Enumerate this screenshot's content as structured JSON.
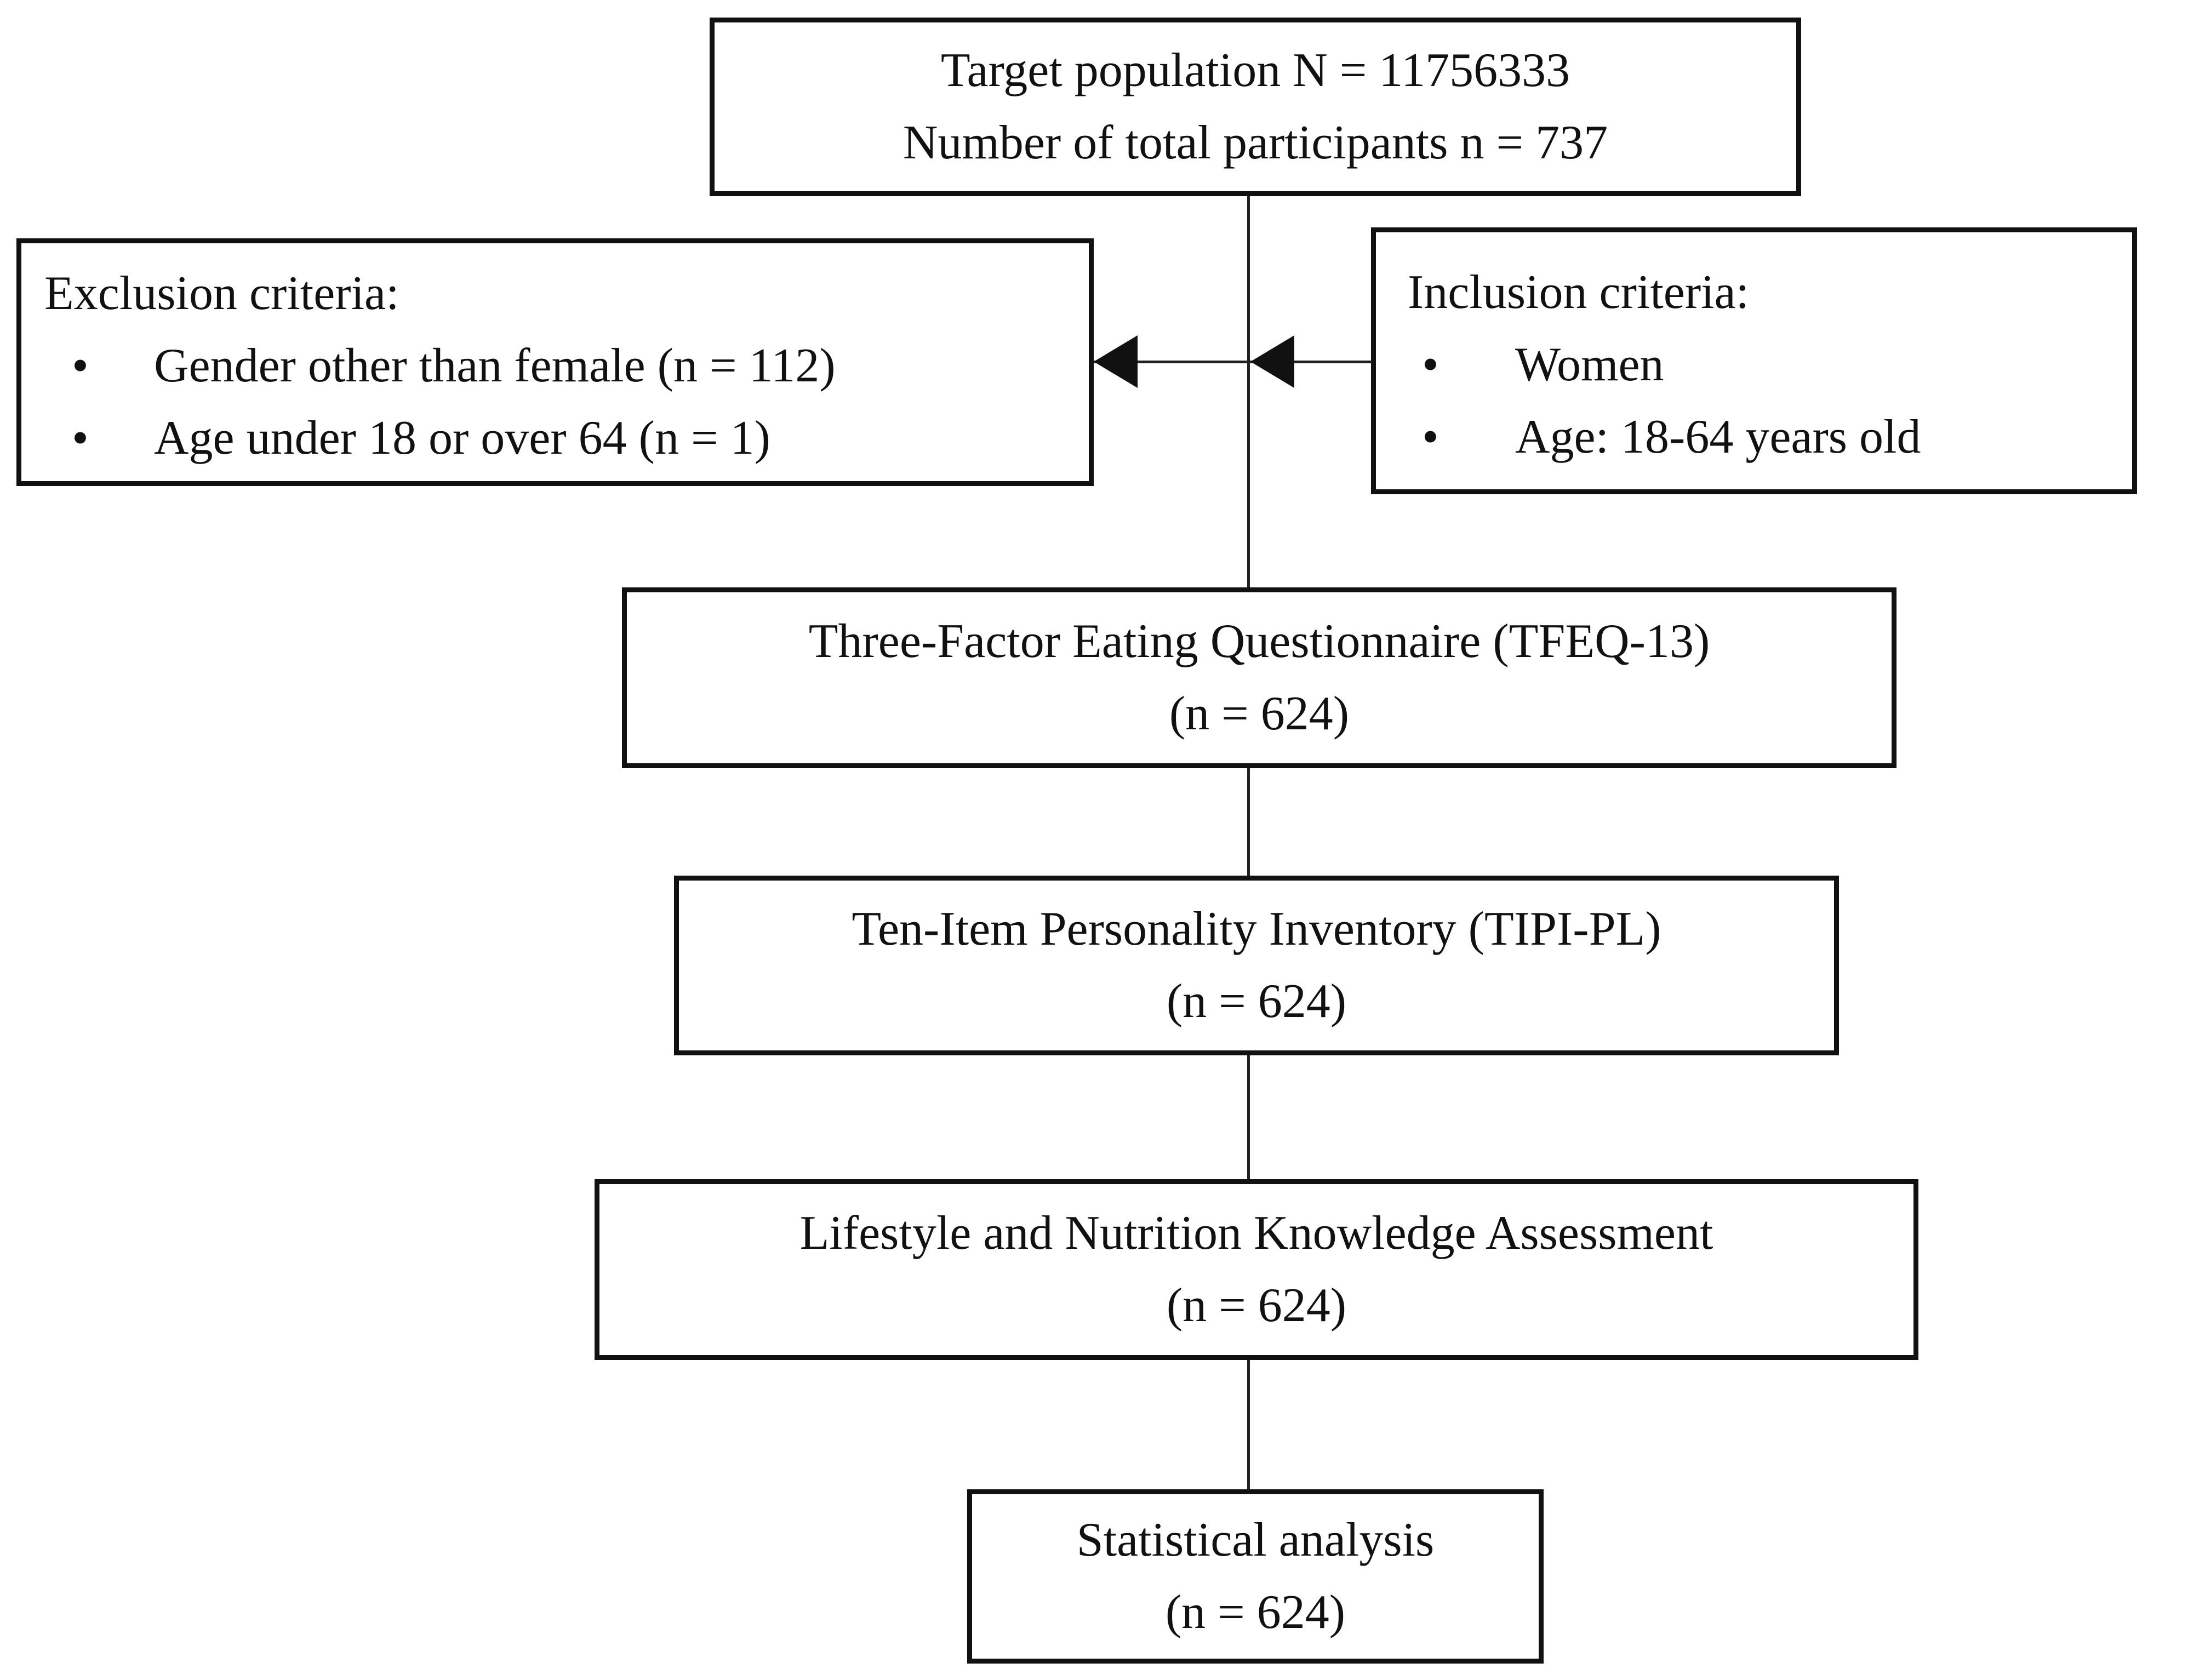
{
  "diagram": {
    "type": "study-flowchart",
    "colors": {
      "border": "#111111",
      "text": "#111111",
      "background": "#ffffff",
      "line": "#222222"
    },
    "top_box": {
      "line1": "Target population N = 11756333",
      "line2": "Number of total participants n = 737"
    },
    "exclusion_box": {
      "title": "Exclusion criteria:",
      "bullet": "•",
      "items": [
        "Gender other than female (n = 112)",
        "Age under 18 or over 64 (n = 1)"
      ]
    },
    "inclusion_box": {
      "title": "Inclusion criteria:",
      "bullet": "•",
      "items": [
        "Women",
        "Age: 18-64 years old"
      ]
    },
    "steps": [
      {
        "title": "Three-Factor Eating Questionnaire (TFEQ-13)",
        "n": "(n = 624)"
      },
      {
        "title": "Ten-Item Personality Inventory (TIPI-PL)",
        "n": "(n = 624)"
      },
      {
        "title": "Lifestyle and Nutrition Knowledge Assessment",
        "n": "(n = 624)"
      },
      {
        "title": "Statistical analysis",
        "n": "(n = 624)"
      }
    ]
  }
}
